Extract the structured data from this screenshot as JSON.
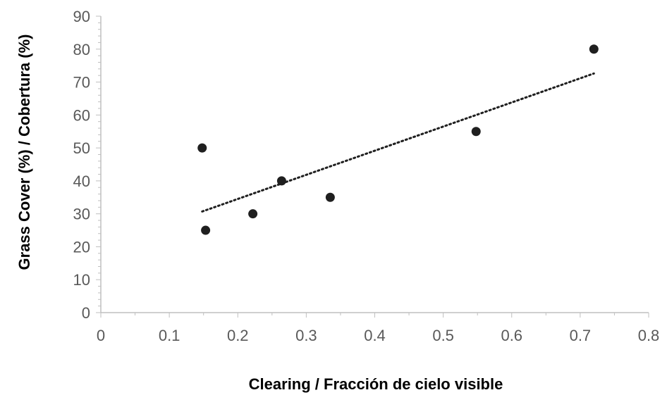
{
  "chart_data": {
    "type": "scatter",
    "title": "",
    "xlabel": "Clearing / Fracción de cielo visible",
    "ylabel": "Grass Cover (%) / Cobertura (%)",
    "xlim": [
      0,
      0.8
    ],
    "ylim": [
      0,
      90
    ],
    "x_ticks": [
      "0",
      "0.1",
      "0.2",
      "0.3",
      "0.4",
      "0.5",
      "0.6",
      "0.7",
      "0.8"
    ],
    "y_ticks": [
      "0",
      "10",
      "20",
      "30",
      "40",
      "50",
      "60",
      "70",
      "80",
      "90"
    ],
    "x_tick_values": [
      0,
      0.1,
      0.2,
      0.3,
      0.4,
      0.5,
      0.6,
      0.7,
      0.8
    ],
    "y_tick_values": [
      0,
      10,
      20,
      30,
      40,
      50,
      60,
      70,
      80,
      90
    ],
    "grid": false,
    "legend": "none",
    "points": [
      {
        "x": 0.148,
        "y": 50
      },
      {
        "x": 0.153,
        "y": 25
      },
      {
        "x": 0.222,
        "y": 30
      },
      {
        "x": 0.264,
        "y": 40
      },
      {
        "x": 0.335,
        "y": 35
      },
      {
        "x": 0.548,
        "y": 55
      },
      {
        "x": 0.72,
        "y": 80
      }
    ],
    "trendline": {
      "type": "linear",
      "style": "dotted",
      "x": [
        0.148,
        0.72
      ],
      "y": [
        30.7,
        72.6
      ]
    },
    "colors": {
      "marker": "#1f1f1f",
      "trendline": "#1f1f1f",
      "axis": "#bfbfbf",
      "tick_text": "#595959"
    }
  }
}
